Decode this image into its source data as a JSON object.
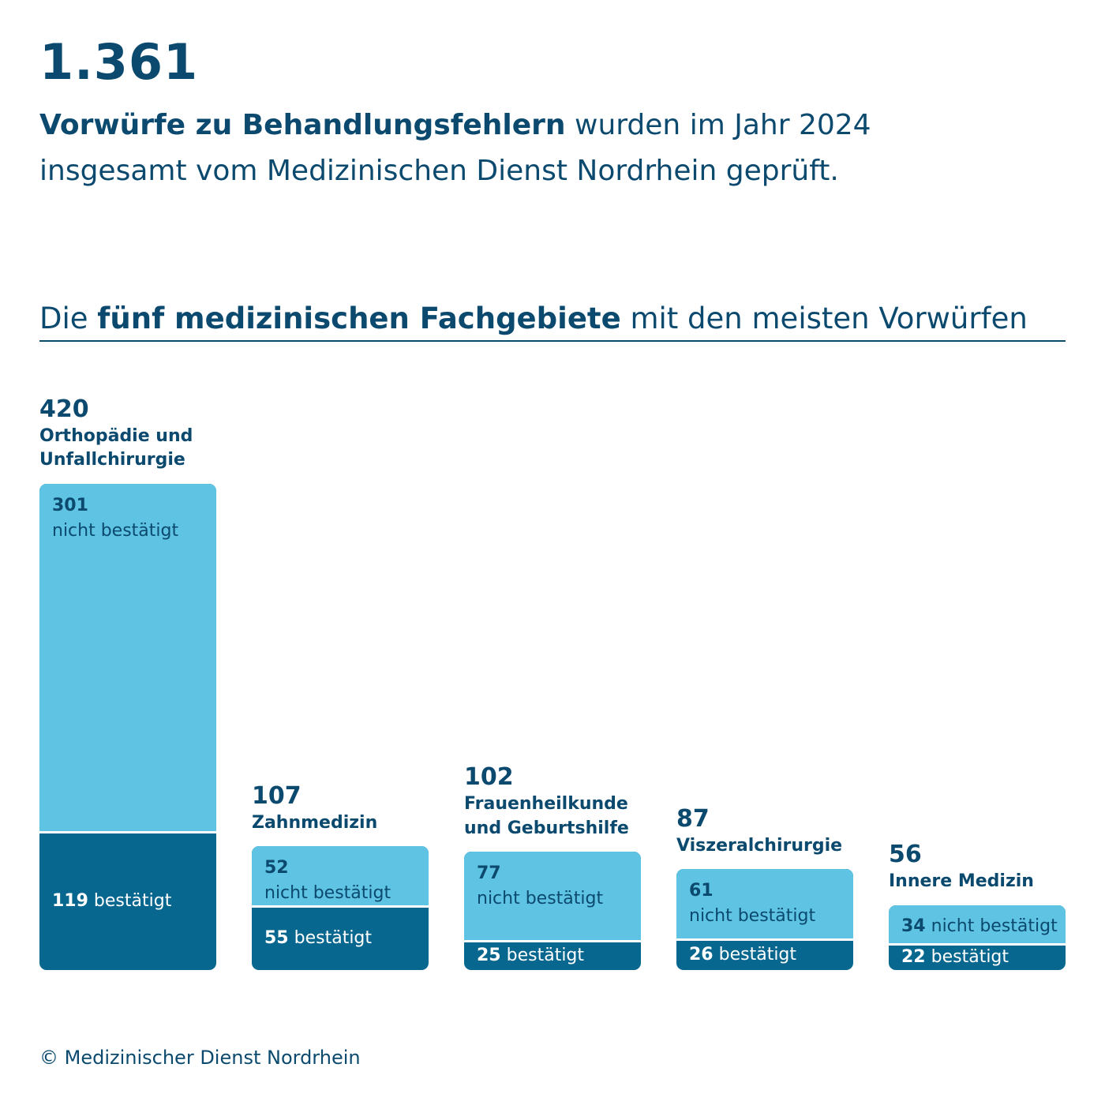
{
  "header": {
    "total": "1.361",
    "intro_bold": "Vorwürfe zu Behandlungsfehlern",
    "intro_line1_rest": " wurden im Jahr 2024",
    "intro_line2": "insgesamt vom Medizinischen Dienst Nordrhein geprüft."
  },
  "subheading": {
    "pre": "Die ",
    "bold": "fünf medizinischen Fachgebiete",
    "post": " mit den meisten Vorwürfen"
  },
  "chart_data": {
    "type": "bar",
    "stacked": true,
    "categories": [
      "Orthopädie und Unfallchirurgie",
      "Zahnmedizin",
      "Frauenheilkunde und Geburtshilfe",
      "Viszeralchirurgie",
      "Innere Medizin"
    ],
    "category_lines": [
      [
        "Orthopädie und",
        "Unfallchirurgie"
      ],
      [
        "Zahnmedizin"
      ],
      [
        "Frauenheilkunde",
        "und Geburtshilfe"
      ],
      [
        "Viszeralchirurgie"
      ],
      [
        "Innere Medizin"
      ]
    ],
    "totals": [
      420,
      107,
      102,
      87,
      56
    ],
    "series": [
      {
        "name": "nicht bestätigt",
        "values": [
          301,
          52,
          77,
          61,
          34
        ],
        "color": "#5fc3e3"
      },
      {
        "name": "bestätigt",
        "values": [
          119,
          55,
          25,
          26,
          22
        ],
        "color": "#08678f"
      }
    ],
    "label_layout": [
      "stacked",
      "stacked",
      "stacked",
      "stacked",
      "inline"
    ],
    "ylim": [
      0,
      420
    ],
    "grid": false,
    "legend": "none"
  },
  "footer": "© Medizinischer Dienst Nordrhein"
}
